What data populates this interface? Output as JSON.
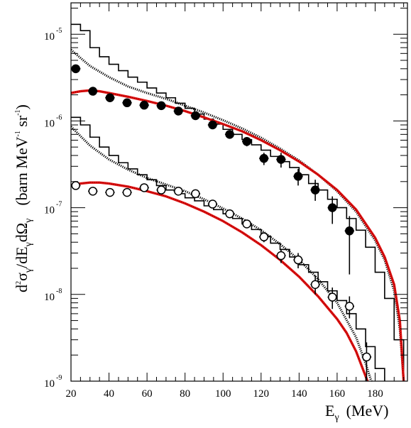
{
  "chart_data": {
    "type": "scatter",
    "title": "",
    "xlabel": {
      "symbol": "E",
      "sub": "γ",
      "unit": "(MeV)"
    },
    "ylabel": {
      "d": "d",
      "two": "2",
      "sigma": "σ",
      "slash": "/dE",
      "g1": "γ",
      "dOmega": "dΩ",
      "g2": "γ",
      "unit_open": "(barn MeV",
      "m1a": "-1",
      "sr": " sr",
      "m1b": "-1",
      "unit_close": ")"
    },
    "xlim": [
      20,
      197
    ],
    "ylim": [
      1e-09,
      2.3e-05
    ],
    "yscale": "log",
    "xticks": [
      20,
      40,
      60,
      80,
      100,
      120,
      140,
      160,
      180
    ],
    "xtick_labels": [
      "20",
      "40",
      "60",
      "80",
      "100",
      "120",
      "140",
      "160",
      "180"
    ],
    "yticks": [
      {
        "value": 1e-09,
        "base": "10",
        "exp": "-9"
      },
      {
        "value": 1e-08,
        "base": "10",
        "exp": "-8"
      },
      {
        "value": 1e-07,
        "base": "10",
        "exp": "-7"
      },
      {
        "value": 1e-06,
        "base": "10",
        "exp": "-6"
      },
      {
        "value": 1e-05,
        "base": "10",
        "exp": "-5"
      }
    ],
    "colors": {
      "model_red": "#e11010",
      "marker_dots": "#7a0000",
      "ink": "#000000"
    },
    "series": [
      {
        "style": "filled-circles",
        "points": [
          {
            "x": 22.5,
            "y": 4e-06,
            "xerr": 2.5,
            "ylo": 3.8e-06,
            "yhi": 4.2e-06
          },
          {
            "x": 31.5,
            "y": 2.2e-06,
            "xerr": 2.5,
            "ylo": 2.1e-06,
            "yhi": 2.3e-06
          },
          {
            "x": 40.5,
            "y": 1.85e-06,
            "xerr": 2.5,
            "ylo": 1.77e-06,
            "yhi": 1.93e-06
          },
          {
            "x": 49.5,
            "y": 1.62e-06,
            "xerr": 2.5,
            "ylo": 1.55e-06,
            "yhi": 1.7e-06
          },
          {
            "x": 58.5,
            "y": 1.52e-06,
            "xerr": 2.5,
            "ylo": 1.45e-06,
            "yhi": 1.6e-06
          },
          {
            "x": 67.5,
            "y": 1.5e-06,
            "xerr": 2.5,
            "ylo": 1.42e-06,
            "yhi": 1.58e-06
          },
          {
            "x": 76.5,
            "y": 1.3e-06,
            "xerr": 2.5,
            "ylo": 1.22e-06,
            "yhi": 1.38e-06
          },
          {
            "x": 85.5,
            "y": 1.15e-06,
            "xerr": 2.5,
            "ylo": 1.07e-06,
            "yhi": 1.23e-06
          },
          {
            "x": 94.5,
            "y": 9e-07,
            "xerr": 2.5,
            "ylo": 8.2e-07,
            "yhi": 9.8e-07
          },
          {
            "x": 103.5,
            "y": 7e-07,
            "xerr": 2.5,
            "ylo": 6.3e-07,
            "yhi": 7.7e-07
          },
          {
            "x": 112.5,
            "y": 5.8e-07,
            "xerr": 2.5,
            "ylo": 5.1e-07,
            "yhi": 6.5e-07
          },
          {
            "x": 121.5,
            "y": 3.7e-07,
            "xerr": 2.5,
            "ylo": 3.1e-07,
            "yhi": 4.3e-07
          },
          {
            "x": 130.5,
            "y": 3.6e-07,
            "xerr": 2.5,
            "ylo": 2.9e-07,
            "yhi": 4.3e-07
          },
          {
            "x": 139.5,
            "y": 2.3e-07,
            "xerr": 2.5,
            "ylo": 1.8e-07,
            "yhi": 2.8e-07
          },
          {
            "x": 148.5,
            "y": 1.6e-07,
            "xerr": 2.5,
            "ylo": 1.2e-07,
            "yhi": 2.1e-07
          },
          {
            "x": 157.5,
            "y": 1e-07,
            "xerr": 2.5,
            "ylo": 6.5e-08,
            "yhi": 1.35e-07
          },
          {
            "x": 166.5,
            "y": 5.4e-08,
            "xerr": 2.5,
            "ylo": 1.7e-08,
            "yhi": 8e-08
          }
        ]
      },
      {
        "style": "open-circles",
        "points": [
          {
            "x": 22.5,
            "y": 1.8e-07,
            "xerr": 2.5,
            "ylo": 1.7e-07,
            "yhi": 1.9e-07
          },
          {
            "x": 31.5,
            "y": 1.55e-07,
            "xerr": 2.5,
            "ylo": 1.47e-07,
            "yhi": 1.63e-07
          },
          {
            "x": 40.5,
            "y": 1.5e-07,
            "xerr": 2.5,
            "ylo": 1.42e-07,
            "yhi": 1.58e-07
          },
          {
            "x": 49.5,
            "y": 1.5e-07,
            "xerr": 2.5,
            "ylo": 1.42e-07,
            "yhi": 1.58e-07
          },
          {
            "x": 58.5,
            "y": 1.7e-07,
            "xerr": 2.5,
            "ylo": 1.62e-07,
            "yhi": 1.78e-07
          },
          {
            "x": 67.5,
            "y": 1.6e-07,
            "xerr": 2.5,
            "ylo": 1.52e-07,
            "yhi": 1.68e-07
          },
          {
            "x": 76.5,
            "y": 1.55e-07,
            "xerr": 2.5,
            "ylo": 1.47e-07,
            "yhi": 1.63e-07
          },
          {
            "x": 85.5,
            "y": 1.45e-07,
            "xerr": 2.5,
            "ylo": 1.37e-07,
            "yhi": 1.53e-07
          },
          {
            "x": 94.5,
            "y": 1.1e-07,
            "xerr": 2.5,
            "ylo": 1.02e-07,
            "yhi": 1.18e-07
          },
          {
            "x": 103.5,
            "y": 8.5e-08,
            "xerr": 2.5,
            "ylo": 7.7e-08,
            "yhi": 9.3e-08
          },
          {
            "x": 112.5,
            "y": 6.5e-08,
            "xerr": 2.5,
            "ylo": 5.8e-08,
            "yhi": 7.2e-08
          },
          {
            "x": 121.5,
            "y": 4.6e-08,
            "xerr": 2.5,
            "ylo": 4e-08,
            "yhi": 5.2e-08
          },
          {
            "x": 130.5,
            "y": 2.8e-08,
            "xerr": 2.5,
            "ylo": 2.3e-08,
            "yhi": 3.3e-08
          },
          {
            "x": 139.5,
            "y": 2.5e-08,
            "xerr": 2.5,
            "ylo": 2e-08,
            "yhi": 3e-08
          },
          {
            "x": 148.5,
            "y": 1.3e-08,
            "xerr": 2.5,
            "ylo": 1e-08,
            "yhi": 1.65e-08
          },
          {
            "x": 157.5,
            "y": 9.3e-09,
            "xerr": 2.5,
            "ylo": 6.8e-09,
            "yhi": 1.2e-08
          },
          {
            "x": 166.5,
            "y": 7.3e-09,
            "xerr": 2.5,
            "ylo": 5.3e-09,
            "yhi": 9.5e-09
          },
          {
            "x": 175.5,
            "y": 1.9e-09,
            "xerr": 2.5,
            "ylo": 1e-09,
            "yhi": 2.8e-09
          }
        ]
      },
      {
        "style": "histogram-upper",
        "edges": [
          20,
          25,
          30,
          35,
          40,
          45,
          50,
          55,
          60,
          65,
          70,
          75,
          80,
          85,
          90,
          95,
          100,
          105,
          110,
          115,
          120,
          125,
          130,
          135,
          140,
          145,
          150,
          155,
          160,
          165,
          170,
          175,
          180,
          185,
          190,
          195
        ],
        "values": [
          1.3e-05,
          1.1e-05,
          7e-06,
          5.5e-06,
          4.5e-06,
          3.8e-06,
          3.2e-06,
          2.8e-06,
          2.4e-06,
          2.1e-06,
          1.85e-06,
          1.6e-06,
          1.4e-06,
          1.2e-06,
          1.05e-06,
          9.2e-07,
          8e-07,
          7e-07,
          6.1e-07,
          5.3e-07,
          4.6e-07,
          3.9e-07,
          3.4e-07,
          2.9e-07,
          2.4e-07,
          1.9e-07,
          1.6e-07,
          1.25e-07,
          1e-07,
          7.5e-08,
          5.5e-08,
          3.5e-08,
          1.8e-08,
          9e-09,
          3e-09
        ]
      },
      {
        "style": "histogram-lower",
        "edges": [
          20,
          25,
          30,
          35,
          40,
          45,
          50,
          55,
          60,
          65,
          70,
          75,
          80,
          85,
          90,
          95,
          100,
          105,
          110,
          115,
          120,
          125,
          130,
          135,
          140,
          145,
          150,
          155,
          160,
          165,
          170,
          175,
          180,
          185
        ],
        "values": [
          1.1e-06,
          9e-07,
          6.5e-07,
          5e-07,
          4e-07,
          3.3e-07,
          2.8e-07,
          2.4e-07,
          2.1e-07,
          1.8e-07,
          1.6e-07,
          1.45e-07,
          1.3e-07,
          1.2e-07,
          1.05e-07,
          9.5e-08,
          8.5e-08,
          7.5e-08,
          6.5e-08,
          5.6e-08,
          4.7e-08,
          3.9e-08,
          3.3e-08,
          2.7e-08,
          2.2e-08,
          1.8e-08,
          1.4e-08,
          1.1e-08,
          8.5e-09,
          6e-09,
          4e-09,
          2.5e-09,
          1.4e-09
        ]
      },
      {
        "style": "dotted-upper",
        "points": [
          [
            20,
            6.6e-06
          ],
          [
            30,
            4.3e-06
          ],
          [
            40,
            3.2e-06
          ],
          [
            50,
            2.5e-06
          ],
          [
            60,
            2.1e-06
          ],
          [
            70,
            1.8e-06
          ],
          [
            80,
            1.5e-06
          ],
          [
            90,
            1.25e-06
          ],
          [
            100,
            1.02e-06
          ],
          [
            110,
            8.2e-07
          ],
          [
            120,
            6.4e-07
          ],
          [
            130,
            4.8e-07
          ],
          [
            140,
            3.5e-07
          ],
          [
            150,
            2.4e-07
          ],
          [
            160,
            1.55e-07
          ],
          [
            170,
            9e-08
          ],
          [
            180,
            4.2e-08
          ],
          [
            185,
            2.5e-08
          ],
          [
            190,
            1.1e-08
          ],
          [
            193,
            4e-09
          ],
          [
            195,
            1e-09
          ]
        ]
      },
      {
        "style": "dotted-lower",
        "points": [
          [
            20,
            8.6e-07
          ],
          [
            30,
            5.2e-07
          ],
          [
            40,
            3.6e-07
          ],
          [
            50,
            2.75e-07
          ],
          [
            60,
            2.2e-07
          ],
          [
            70,
            1.85e-07
          ],
          [
            80,
            1.55e-07
          ],
          [
            90,
            1.25e-07
          ],
          [
            100,
            9.8e-08
          ],
          [
            110,
            7.5e-08
          ],
          [
            120,
            5.5e-08
          ],
          [
            130,
            3.8e-08
          ],
          [
            140,
            2.5e-08
          ],
          [
            150,
            1.5e-08
          ],
          [
            160,
            8e-09
          ],
          [
            170,
            3.2e-09
          ],
          [
            175,
            1.6e-09
          ],
          [
            178,
            1e-09
          ]
        ]
      },
      {
        "style": "red-upper",
        "points": [
          [
            20,
            2.1e-06
          ],
          [
            25,
            2.2e-06
          ],
          [
            30,
            2.25e-06
          ],
          [
            35,
            2.2e-06
          ],
          [
            40,
            2.1e-06
          ],
          [
            50,
            1.9e-06
          ],
          [
            60,
            1.7e-06
          ],
          [
            70,
            1.5e-06
          ],
          [
            80,
            1.3e-06
          ],
          [
            90,
            1.1e-06
          ],
          [
            100,
            9.2e-07
          ],
          [
            110,
            7.6e-07
          ],
          [
            120,
            6e-07
          ],
          [
            130,
            4.6e-07
          ],
          [
            140,
            3.4e-07
          ],
          [
            150,
            2.4e-07
          ],
          [
            160,
            1.6e-07
          ],
          [
            170,
            9.5e-08
          ],
          [
            180,
            4.5e-08
          ],
          [
            185,
            2.7e-08
          ],
          [
            190,
            1.3e-08
          ],
          [
            193,
            5e-09
          ],
          [
            195,
            1e-09
          ]
        ]
      },
      {
        "style": "red-lower",
        "points": [
          [
            20,
            1.8e-07
          ],
          [
            25,
            1.9e-07
          ],
          [
            30,
            1.95e-07
          ],
          [
            35,
            1.95e-07
          ],
          [
            40,
            1.9e-07
          ],
          [
            50,
            1.75e-07
          ],
          [
            60,
            1.55e-07
          ],
          [
            70,
            1.35e-07
          ],
          [
            80,
            1.12e-07
          ],
          [
            90,
            9e-08
          ],
          [
            100,
            7e-08
          ],
          [
            110,
            5.2e-08
          ],
          [
            120,
            3.7e-08
          ],
          [
            130,
            2.5e-08
          ],
          [
            140,
            1.6e-08
          ],
          [
            150,
            9.5e-09
          ],
          [
            160,
            5.2e-09
          ],
          [
            165,
            3.6e-09
          ],
          [
            170,
            2.2e-09
          ],
          [
            174,
            1.3e-09
          ],
          [
            176,
            1e-09
          ]
        ]
      }
    ],
    "grid": false,
    "legend": "none"
  }
}
